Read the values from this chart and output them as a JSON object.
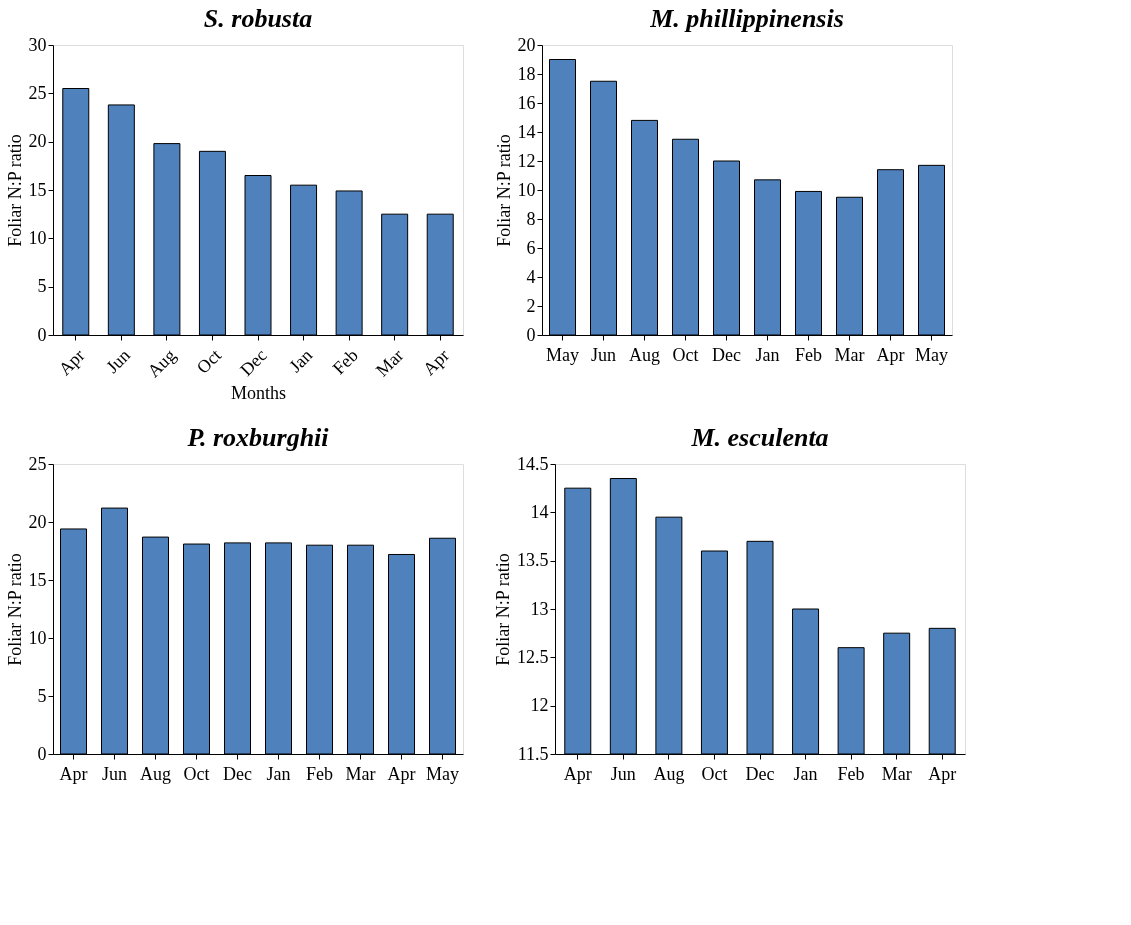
{
  "chart_data": [
    {
      "type": "bar",
      "title": "S. robusta",
      "xlabel": "Months",
      "ylabel": "Foliar N:P ratio",
      "categories": [
        "Apr",
        "Jun",
        "Aug",
        "Oct",
        "Dec",
        "Jan",
        "Feb",
        "Mar",
        "Apr"
      ],
      "values": [
        25.5,
        23.8,
        19.8,
        19.0,
        16.5,
        15.5,
        14.9,
        12.5,
        12.5
      ],
      "color": "#4f81bd",
      "ylim": [
        0,
        30
      ],
      "yticks": [
        0,
        5,
        10,
        15,
        20,
        25,
        30
      ],
      "grid": false
    },
    {
      "type": "bar",
      "title": "M. phillippinensis",
      "ylabel": "Foliar N:P ratio",
      "categories": [
        "May",
        "Jun",
        "Aug",
        "Oct",
        "Dec",
        "Jan",
        "Feb",
        "Mar",
        "Apr",
        "May"
      ],
      "values": [
        19.0,
        17.5,
        14.8,
        13.5,
        12.0,
        10.7,
        9.9,
        9.5,
        11.4,
        11.7
      ],
      "color": "#4f81bd",
      "ylim": [
        0,
        20
      ],
      "yticks": [
        0,
        2,
        4,
        6,
        8,
        10,
        12,
        14,
        16,
        18,
        20
      ],
      "grid": false
    },
    {
      "type": "bar",
      "title": "P. roxburghii",
      "ylabel": "Foliar N:P ratio",
      "categories": [
        "Apr",
        "Jun",
        "Aug",
        "Oct",
        "Dec",
        "Jan",
        "Feb",
        "Mar",
        "Apr",
        "May"
      ],
      "values": [
        19.4,
        21.2,
        18.7,
        18.1,
        18.2,
        18.2,
        18.0,
        18.0,
        17.2,
        18.6
      ],
      "color": "#4f81bd",
      "ylim": [
        0,
        25
      ],
      "yticks": [
        0,
        5,
        10,
        15,
        20,
        25
      ],
      "grid": false
    },
    {
      "type": "bar",
      "title": "M. esculenta",
      "ylabel": "Foliar N:P ratio",
      "categories": [
        "Apr",
        "Jun",
        "Aug",
        "Oct",
        "Dec",
        "Jan",
        "Feb",
        "Mar",
        "Apr"
      ],
      "values": [
        14.25,
        14.35,
        13.95,
        13.6,
        13.7,
        13.0,
        12.6,
        12.75,
        12.8
      ],
      "color": "#4f81bd",
      "ylim": [
        11.5,
        14.5
      ],
      "yticks": [
        11.5,
        12,
        12.5,
        13,
        13.5,
        14,
        14.5
      ],
      "grid": false
    }
  ]
}
